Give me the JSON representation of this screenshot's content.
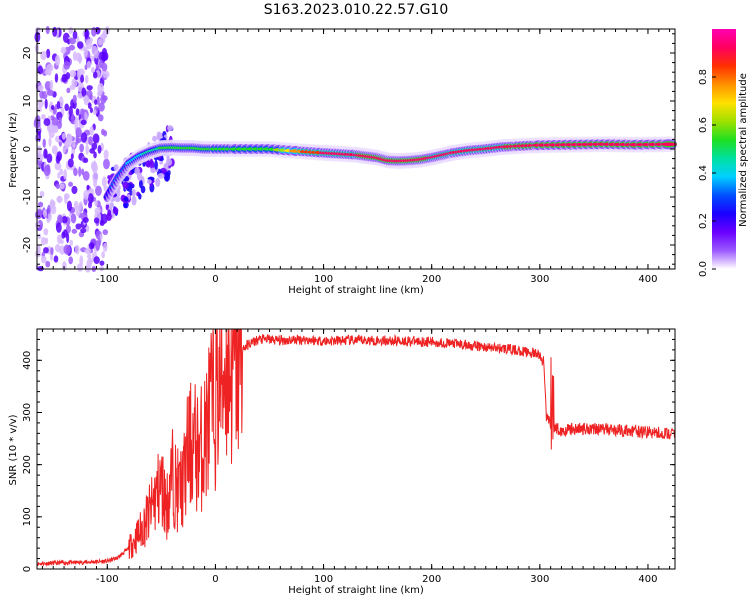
{
  "title": "S163.2023.010.22.57.G10",
  "chart_data": [
    {
      "type": "heatmap",
      "xlabel": "Height of straight line (km)",
      "ylabel": "Frequency (Hz)",
      "xlim": [
        -165,
        425
      ],
      "ylim": [
        -25,
        25
      ],
      "xticks": [
        -100,
        0,
        100,
        200,
        300,
        400
      ],
      "yticks": [
        -20,
        -10,
        0,
        10,
        20
      ],
      "colorbar": {
        "label": "Normalized spectral amplitude",
        "range": [
          0.0,
          1.0
        ],
        "ticks": [
          0.0,
          0.2,
          0.4,
          0.6,
          0.8
        ],
        "colors": [
          "#ffffff",
          "#9b59ff",
          "#6a00ff",
          "#1a00ff",
          "#0050ff",
          "#00d0ff",
          "#00e0a0",
          "#20e020",
          "#a0e000",
          "#ffe000",
          "#ff9000",
          "#ff3000",
          "#ff0060",
          "#ff00b0"
        ]
      },
      "ridge": {
        "x": [
          -100,
          -90,
          -80,
          -70,
          -60,
          -50,
          -40,
          -30,
          -20,
          -10,
          0,
          20,
          50,
          80,
          100,
          115,
          130,
          140,
          150,
          160,
          170,
          180,
          190,
          200,
          210,
          220,
          235,
          250,
          265,
          280,
          300,
          330,
          360,
          390,
          425
        ],
        "freq": [
          -10,
          -6,
          -3,
          -1.5,
          -0.5,
          0.2,
          0.3,
          0.2,
          0.2,
          0,
          0,
          0,
          0,
          -0.5,
          -0.8,
          -1,
          -1.2,
          -1.5,
          -1.8,
          -2.4,
          -2.5,
          -2.4,
          -2.2,
          -1.8,
          -1.3,
          -0.8,
          -0.3,
          0,
          0.4,
          0.6,
          0.8,
          0.9,
          1.0,
          0.9,
          1.0
        ],
        "amplitude": [
          0.25,
          0.3,
          0.35,
          0.4,
          0.45,
          0.5,
          0.55,
          0.5,
          0.5,
          0.55,
          0.55,
          0.5,
          0.5,
          0.8,
          0.9,
          0.9,
          0.9,
          0.95,
          0.95,
          0.95,
          0.95,
          0.95,
          0.95,
          0.9,
          0.9,
          0.9,
          0.9,
          0.9,
          0.9,
          0.95,
          0.95,
          0.95,
          0.95,
          0.95,
          0.95
        ]
      },
      "noise_region": {
        "x": [
          -165,
          -100
        ],
        "freq": [
          -25,
          25
        ]
      }
    },
    {
      "type": "line",
      "xlabel": "Height of straight line (km)",
      "ylabel": "SNR (10 * v/v)",
      "xlim": [
        -165,
        425
      ],
      "ylim": [
        0,
        460
      ],
      "xticks": [
        -100,
        0,
        100,
        200,
        300,
        400
      ],
      "yticks": [
        0,
        100,
        200,
        300,
        400
      ],
      "color": "#ee2222",
      "series": [
        {
          "x": [
            -165,
            -140,
            -120,
            -100,
            -90,
            -80,
            -70,
            -60,
            -55,
            -50,
            -45,
            -40,
            -35,
            -30,
            -25,
            -20,
            -15,
            -10,
            -5,
            0,
            5,
            10,
            15,
            20,
            25,
            30,
            40,
            50,
            60,
            80,
            100,
            120,
            150,
            180,
            200,
            220,
            250,
            270,
            290,
            300,
            303,
            305,
            308,
            310,
            315,
            320,
            330,
            350,
            380,
            400,
            425
          ],
          "values": [
            10,
            12,
            13,
            15,
            22,
            40,
            70,
            110,
            140,
            160,
            120,
            180,
            150,
            160,
            230,
            240,
            220,
            250,
            300,
            320,
            360,
            400,
            395,
            410,
            420,
            430,
            440,
            440,
            438,
            440,
            437,
            438,
            438,
            437,
            435,
            432,
            425,
            422,
            415,
            410,
            390,
            295,
            285,
            280,
            270,
            265,
            268,
            270,
            265,
            262,
            258
          ]
        }
      ]
    }
  ]
}
